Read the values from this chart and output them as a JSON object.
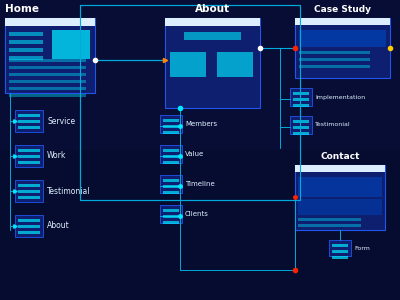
{
  "bg_color": "#050a2e",
  "panel_dark": "#0a1545",
  "panel_mid": "#0d1f6e",
  "border_color": "#1a44cc",
  "border_light": "#2255ee",
  "cyan": "#00e8ff",
  "cyan_dark": "#0088cc",
  "blue_mid": "#0044bb",
  "white": "#ffffff",
  "line_color": "#0088cc",
  "line_bright": "#00aadd",
  "orange": "#ff8800",
  "red_dot": "#ff2200",
  "yellow_dot": "#ffcc00",
  "text_color": "#e0f0ff",
  "home_label": "Home",
  "about_label": "About",
  "case_label": "Case Study",
  "contact_label": "Contact",
  "home_subs": [
    "Service",
    "Work",
    "Testimonial",
    "About"
  ],
  "about_subs": [
    "Members",
    "Value",
    "Timeline",
    "Clients"
  ],
  "case_subs": [
    "Implementation",
    "Testimonial"
  ],
  "contact_subs": [
    "Form"
  ]
}
